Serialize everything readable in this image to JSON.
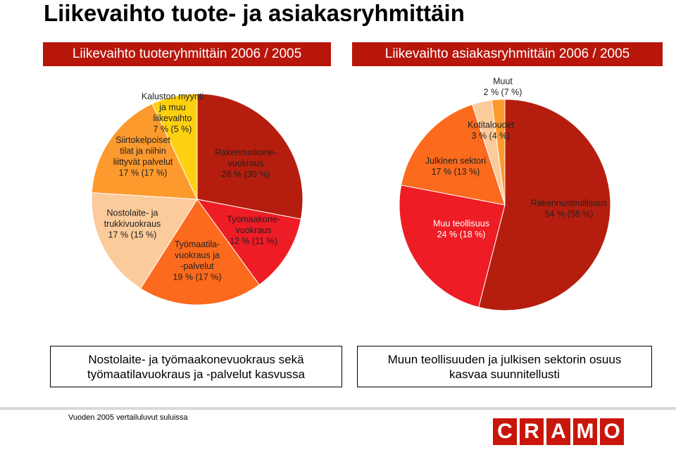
{
  "title": "Liikevaihto tuote- ja asiakasryhmittäin",
  "headers": {
    "left": "Liikevaihto tuoteryhmittäin 2006 / 2005",
    "right": "Liikevaihto asiakasryhmittäin 2006 / 2005"
  },
  "chart_data": [
    {
      "type": "pie",
      "title": "Liikevaihto tuoteryhmittäin 2006 / 2005",
      "slices": [
        {
          "name": "Rakennuskonevuokraus",
          "value": 28,
          "prev_value": 30,
          "color": "#b51e0e",
          "label_lines": [
            "Rakennuskone-",
            "vuokraus",
            "28 % (30 %)"
          ]
        },
        {
          "name": "Työmaakonevuokraus",
          "value": 12,
          "prev_value": 11,
          "color": "#ee1c25",
          "label_lines": [
            "Työmaakone-",
            "vuokraus",
            "12 % (11 %)"
          ]
        },
        {
          "name": "Työmaatilavuokraus ja -palvelut",
          "value": 19,
          "prev_value": 17,
          "color": "#fb6a1d",
          "label_lines": [
            "Työmaatila-",
            "vuokraus ja",
            "-palvelut",
            "19 % (17 %)"
          ]
        },
        {
          "name": "Nostolaite- ja trukkivuokraus",
          "value": 17,
          "prev_value": 15,
          "color": "#fccb9b",
          "label_lines": [
            "Nostolaite- ja",
            "trukkivuokraus",
            "17 % (15 %)"
          ]
        },
        {
          "name": "Siirtokelpoiset tilat ja niihin liittyvät palvelut",
          "value": 17,
          "prev_value": 17,
          "color": "#fd9a2e",
          "label_lines": [
            "Siirtokelpoiset",
            "tilat ja niihin",
            "liittyvät palvelut",
            "17 % (17 %)"
          ]
        },
        {
          "name": "Kaluston myynti ja muu liikevaihto",
          "value": 7,
          "prev_value": 5,
          "color": "#fdd10f",
          "label_lines": [
            "Kaluston myynti",
            "ja muu",
            "liikevaihto",
            "7 % (5 %)"
          ]
        }
      ]
    },
    {
      "type": "pie",
      "title": "Liikevaihto asiakasryhmittäin 2006 / 2005",
      "slices": [
        {
          "name": "Rakennusteollisuus",
          "value": 54,
          "prev_value": 58,
          "color": "#b51e0e",
          "label_lines": [
            "Rakennusteollisuus",
            "54 % (58 %)"
          ]
        },
        {
          "name": "Muu teollisuus",
          "value": 24,
          "prev_value": 18,
          "color": "#ee1c25",
          "label_lines": [
            "Muu teollisuus",
            "24 % (18 %)"
          ]
        },
        {
          "name": "Julkinen sektori",
          "value": 17,
          "prev_value": 13,
          "color": "#fb6a1d",
          "label_lines": [
            "Julkinen sektori",
            "17 % (13 %)"
          ]
        },
        {
          "name": "Kotitaloudet",
          "value": 3,
          "prev_value": 4,
          "color": "#fccb9b",
          "label_lines": [
            "Kotitaloudet",
            "3 % (4 %)"
          ]
        },
        {
          "name": "Muut",
          "value": 2,
          "prev_value": 7,
          "color": "#fd9a2e",
          "label_lines": [
            "Muut",
            "2 % (7 %)"
          ]
        }
      ]
    }
  ],
  "summary": {
    "left_line1": "Nostolaite- ja työmaakonevuokraus sekä",
    "left_line2": "työmaatilavuokraus ja -palvelut kasvussa",
    "right_line1": "Muun teollisuuden ja julkisen sektorin osuus",
    "right_line2": "kasvaa suunnitellusti"
  },
  "footnote": "Vuoden 2005 vertailuluvut suluissa",
  "logo": {
    "letters": [
      "C",
      "R",
      "A",
      "M",
      "O"
    ]
  }
}
